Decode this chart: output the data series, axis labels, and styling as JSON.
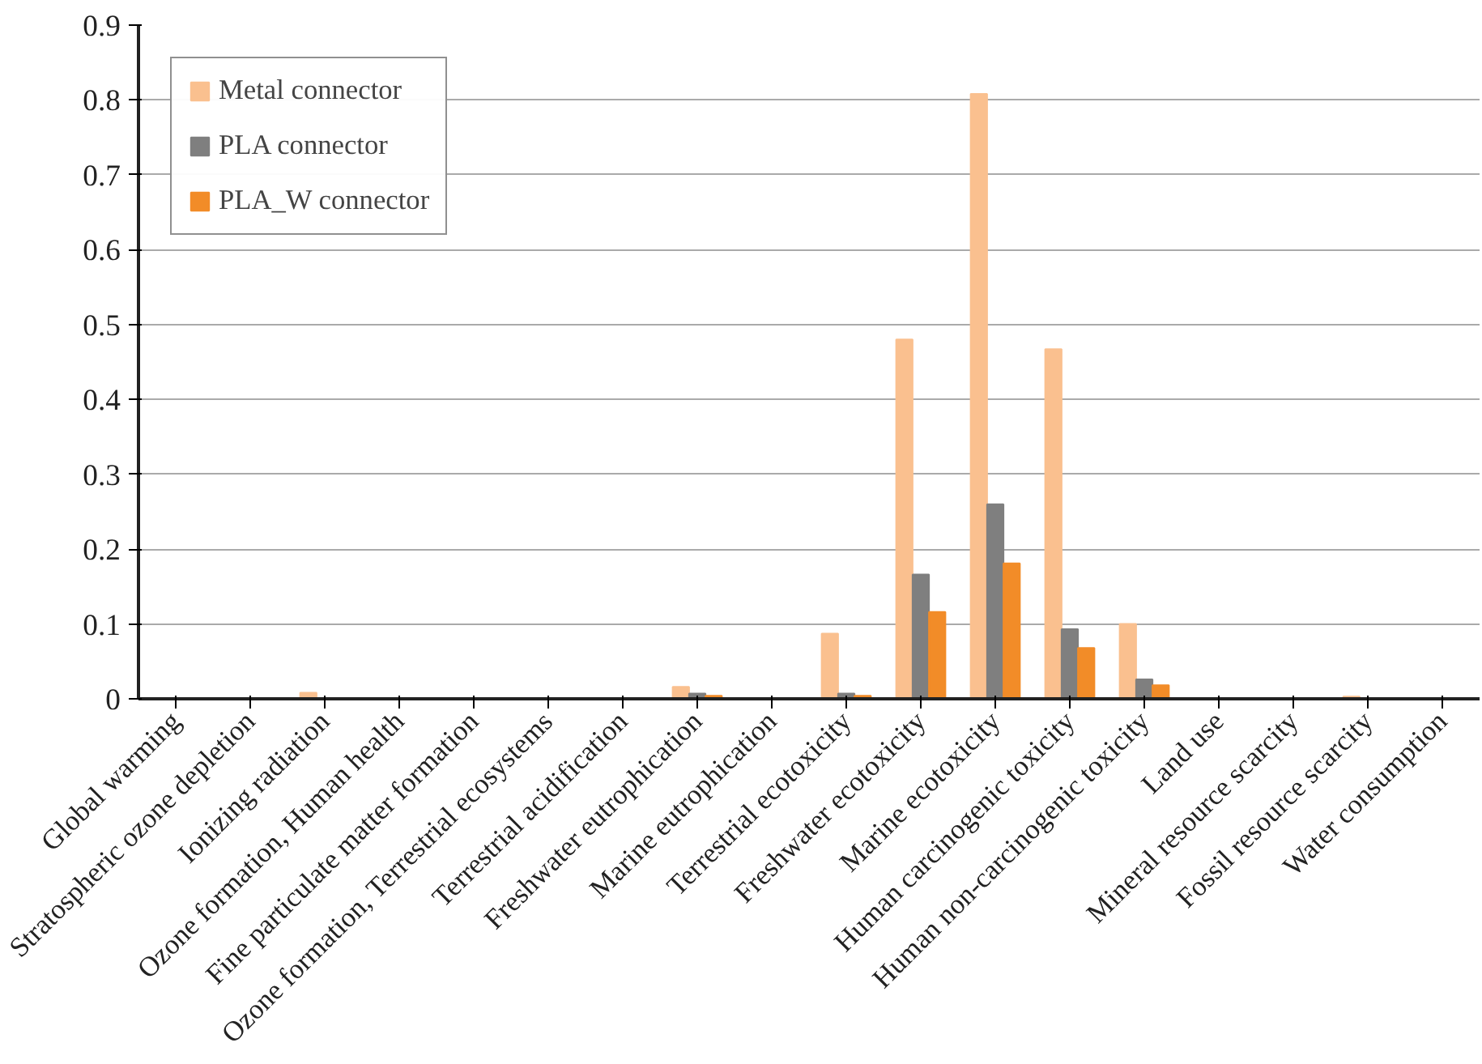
{
  "chart_data": {
    "type": "bar",
    "categories": [
      "Global warming",
      "Stratospheric ozone depletion",
      "Ionizing radiation",
      "Ozone formation, Human health",
      "Fine particulate matter formation",
      "Ozone formation, Terrestrial ecosystems",
      "Terrestrial acidification",
      "Freshwater eutrophication",
      "Marine eutrophication",
      "Terrestrial ecotoxicity",
      "Freshwater ecotoxicity",
      "Marine ecotoxicity",
      "Human carcinogenic toxicity",
      "Human non-carcinogenic toxicity",
      "Land use",
      "Mineral resource scarcity",
      "Fossil resource scarcity",
      "Water consumption"
    ],
    "series": [
      {
        "name": "Metal connector",
        "color": "#fac08f",
        "values": [
          0,
          0,
          0.008,
          0,
          0,
          0,
          0,
          0.016,
          0,
          0.087,
          0.48,
          0.808,
          0.467,
          0.1,
          0,
          0,
          0.003,
          0
        ]
      },
      {
        "name": "PLA connector",
        "color": "#7f7f7f",
        "values": [
          0,
          0,
          0,
          0,
          0,
          0,
          0,
          0.007,
          0,
          0.007,
          0.166,
          0.26,
          0.093,
          0.026,
          0,
          0,
          0,
          0
        ]
      },
      {
        "name": "PLA_W connector",
        "color": "#f28c28",
        "values": [
          0,
          0,
          0,
          0,
          0,
          0,
          0,
          0.004,
          0,
          0.004,
          0.116,
          0.181,
          0.068,
          0.018,
          0,
          0,
          0,
          0
        ]
      }
    ],
    "ylim": [
      0,
      0.9
    ],
    "yticks": [
      0,
      0.1,
      0.2,
      0.3,
      0.4,
      0.5,
      0.6,
      0.7,
      0.8,
      0.9
    ],
    "grid": "y",
    "legend": "top left"
  }
}
